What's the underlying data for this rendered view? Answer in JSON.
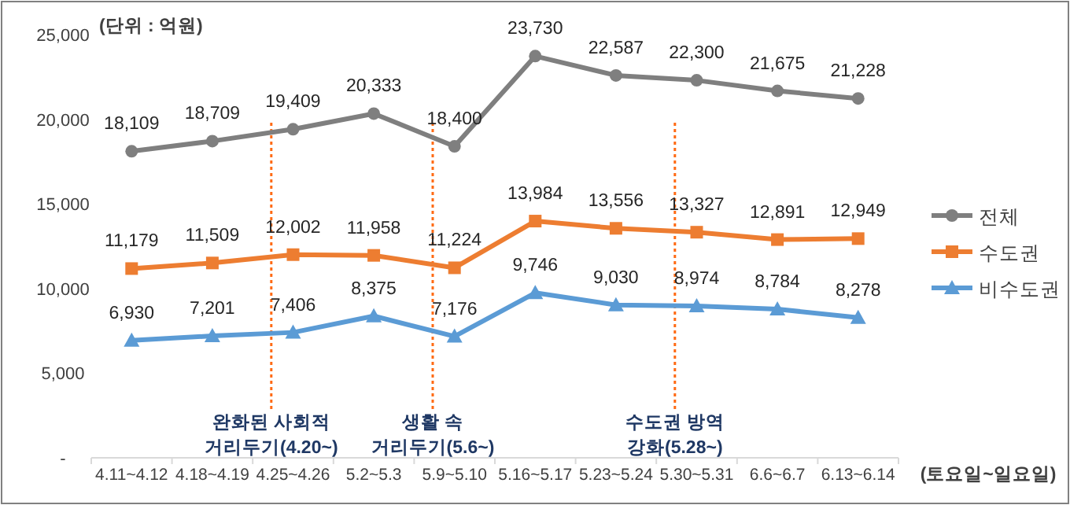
{
  "chart_data": {
    "type": "line",
    "categories": [
      "4.11~4.12",
      "4.18~4.19",
      "4.25~4.26",
      "5.2~5.3",
      "5.9~5.10",
      "5.16~5.17",
      "5.23~5.24",
      "5.30~5.31",
      "6.6~6.7",
      "6.13~6.14"
    ],
    "series": [
      {
        "name": "전체",
        "color": "#7f7f7f",
        "marker": "circle",
        "values": [
          18109,
          18709,
          19409,
          20333,
          18400,
          23730,
          22587,
          22300,
          21675,
          21228
        ],
        "value_labels": [
          "18,109",
          "18,709",
          "19,409",
          "20,333",
          "18,400",
          "23,730",
          "22,587",
          "22,300",
          "21,675",
          "21,228"
        ]
      },
      {
        "name": "수도권",
        "color": "#ed7d31",
        "marker": "square",
        "values": [
          11179,
          11509,
          12002,
          11958,
          11224,
          13984,
          13556,
          13327,
          12891,
          12949
        ],
        "value_labels": [
          "11,179",
          "11,509",
          "12,002",
          "11,958",
          "11,224",
          "13,984",
          "13,556",
          "13,327",
          "12,891",
          "12,949"
        ]
      },
      {
        "name": "비수도권",
        "color": "#5b9bd5",
        "marker": "triangle",
        "values": [
          6930,
          7201,
          7406,
          8375,
          7176,
          9746,
          9030,
          8974,
          8784,
          8278
        ],
        "value_labels": [
          "6,930",
          "7,201",
          "7,406",
          "8,375",
          "7,176",
          "9,746",
          "9,030",
          "8,974",
          "8,784",
          "8,278"
        ]
      }
    ],
    "ylim": [
      0,
      25000
    ],
    "yticks": [
      {
        "value": 0,
        "label": "-"
      },
      {
        "value": 5000,
        "label": "5,000"
      },
      {
        "value": 10000,
        "label": "10,000"
      },
      {
        "value": 15000,
        "label": "15,000"
      },
      {
        "value": 20000,
        "label": "20,000"
      },
      {
        "value": 25000,
        "label": "25,000"
      }
    ],
    "legend": "right",
    "grid": false,
    "line_style": "solid",
    "ref_lines": [
      {
        "axis": "x",
        "value": "4.25~4.26",
        "label": "완화된 사회적\n거리두기(4.20~)",
        "color": "#ff6a13",
        "line_style": "dotted"
      },
      {
        "axis": "x",
        "value": "5.9~5.10",
        "label": "생활 속\n거리두기(5.6~)",
        "color": "#ff6a13",
        "line_style": "dotted"
      },
      {
        "axis": "x",
        "value": "5.30~5.31",
        "label": "수도권 방역\n강화(5.28~)",
        "color": "#ff6a13",
        "line_style": "dotted"
      }
    ],
    "annotations": [
      "(단위 : 억원)",
      "(토요일~일요일)"
    ]
  }
}
